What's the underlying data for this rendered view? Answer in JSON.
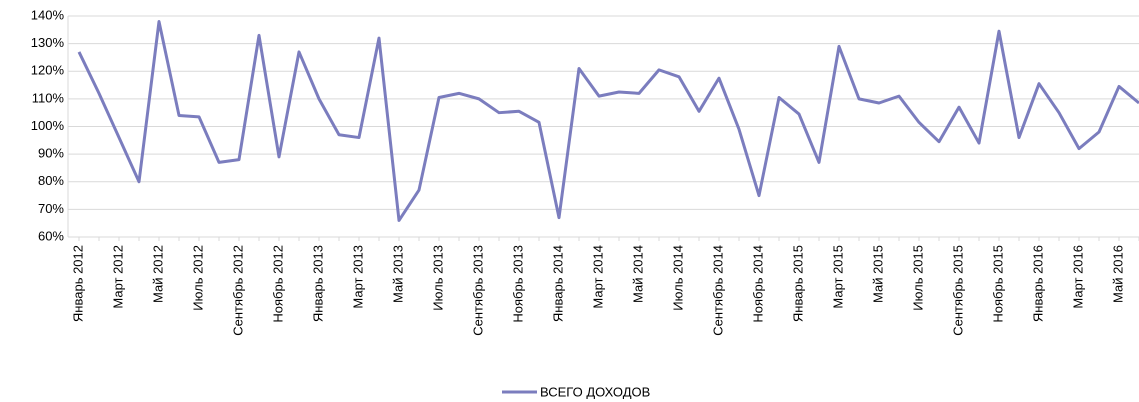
{
  "chart_data": {
    "type": "line",
    "categories": [
      "Январь 2012",
      null,
      "Март 2012",
      null,
      "Май 2012",
      null,
      "Июль 2012",
      null,
      "Сентябрь 2012",
      null,
      "Ноябрь 2012",
      null,
      "Январь 2013",
      null,
      "Март 2013",
      null,
      "Май 2013",
      null,
      "Июль 2013",
      null,
      "Сентябрь 2013",
      null,
      "Ноябрь 2013",
      null,
      "Январь 2014",
      null,
      "Март 2014",
      null,
      "Май 2014",
      null,
      "Июль 2014",
      null,
      "Сентябрь 2014",
      null,
      "Ноябрь 2014",
      null,
      "Январь 2015",
      null,
      "Март 2015",
      null,
      "Май 2015",
      null,
      "Июль 2015",
      null,
      "Сентябрь 2015",
      null,
      "Ноябрь 2015",
      null,
      "Январь 2016",
      null,
      "Март 2016",
      null,
      "Май 2016",
      null
    ],
    "series": [
      {
        "name": "ВСЕГО ДОХОДОВ",
        "color": "#7b7dbe",
        "values": [
          127,
          112,
          96,
          80,
          138,
          104,
          103.5,
          87,
          88,
          133,
          89,
          127,
          110,
          97,
          96,
          132,
          66,
          77,
          110.5,
          112,
          110,
          105,
          105.5,
          101.5,
          67,
          121,
          111,
          112.5,
          112,
          120.5,
          118,
          105.5,
          117.5,
          99,
          75,
          110.5,
          104.5,
          87,
          129,
          110,
          108.5,
          111,
          101.5,
          94.5,
          107,
          94,
          134.5,
          96,
          115.5,
          105,
          92,
          98,
          114.5,
          108.5
        ]
      }
    ],
    "ylim": [
      60,
      140
    ],
    "yticks": [
      {
        "value": 60,
        "label": "60%"
      },
      {
        "value": 70,
        "label": "70%"
      },
      {
        "value": 80,
        "label": "80%"
      },
      {
        "value": 90,
        "label": "90%"
      },
      {
        "value": 100,
        "label": "100%"
      },
      {
        "value": 110,
        "label": "110%"
      },
      {
        "value": 120,
        "label": "120%"
      },
      {
        "value": 130,
        "label": "130%"
      },
      {
        "value": 140,
        "label": "140%"
      }
    ],
    "grid": true,
    "legend": "bottom"
  }
}
